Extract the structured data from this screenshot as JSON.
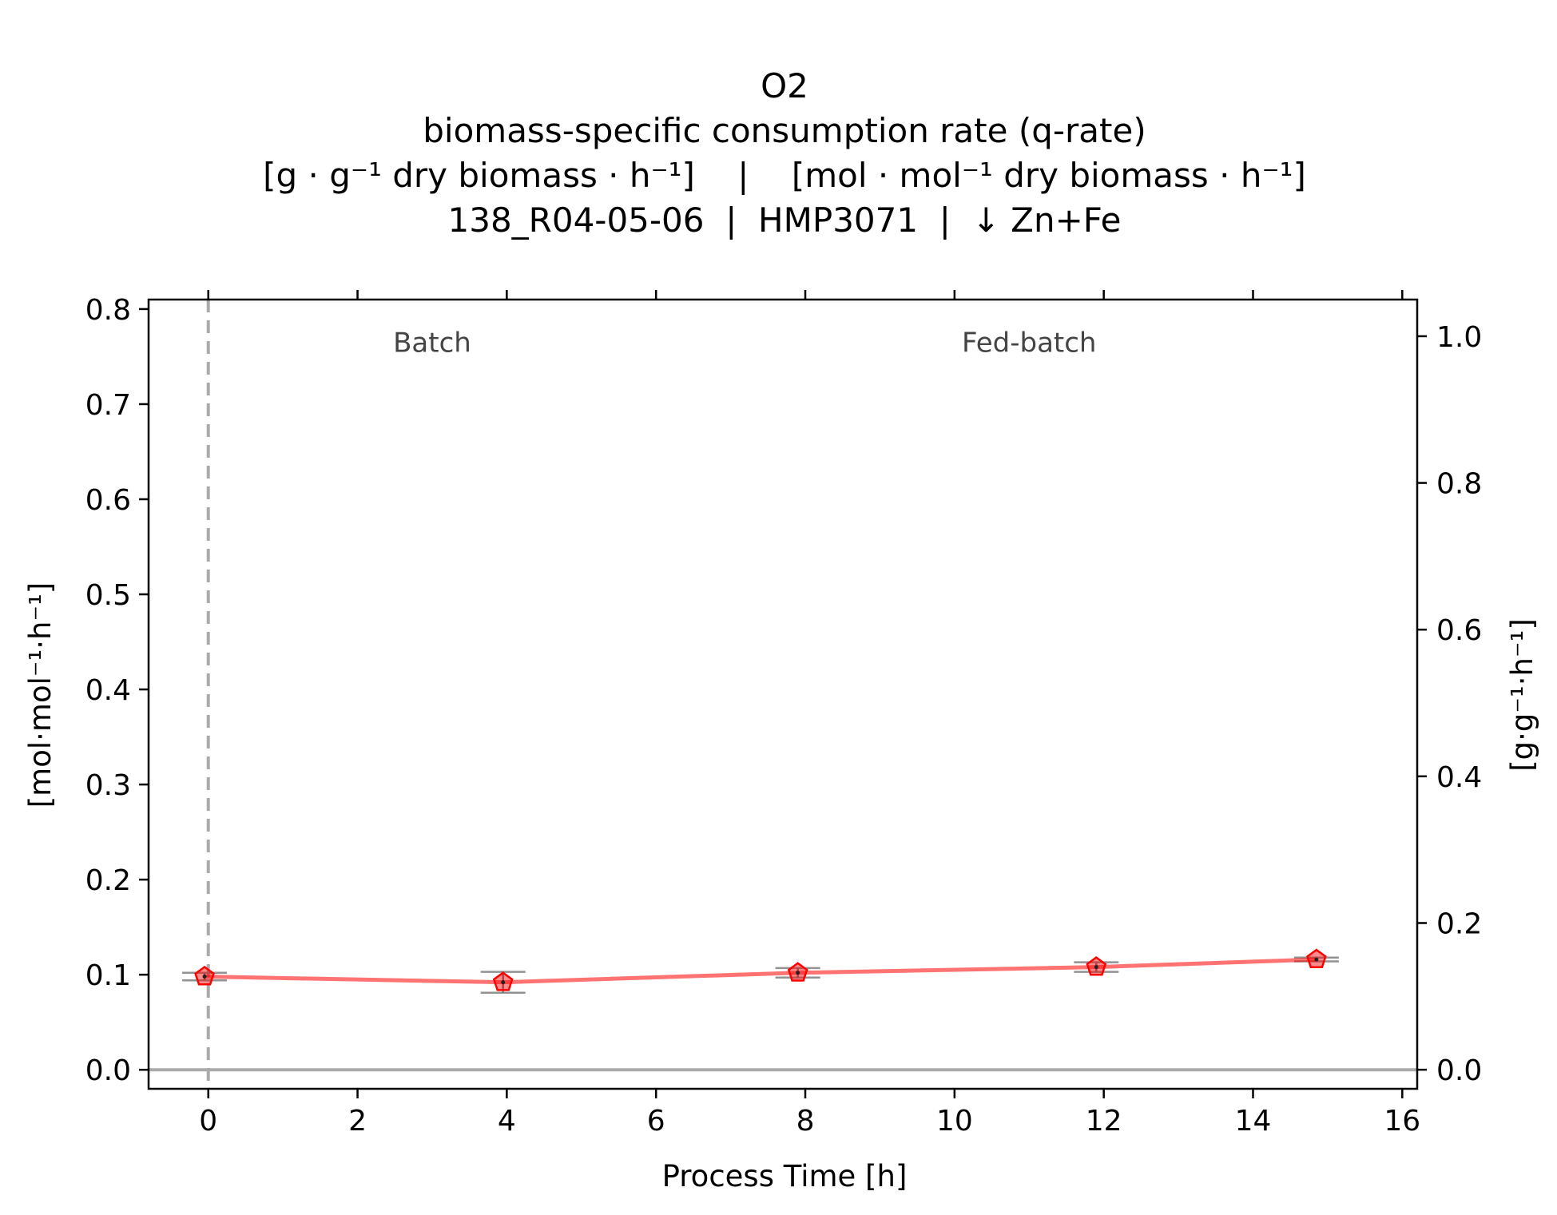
{
  "chart_data": {
    "type": "line",
    "title_lines": [
      "O2",
      "biomass-specific consumption rate (q-rate)",
      "[g · g⁻¹ dry biomass · h⁻¹]    |    [mol · mol⁻¹ dry biomass · h⁻¹]",
      "138_R04-05-06  |  HMP3071  |  ↓ Zn+Fe"
    ],
    "xlabel": "Process Time [h]",
    "ylabel_left": "[mol·mol⁻¹·h⁻¹]",
    "ylabel_right": "[g·g⁻¹·h⁻¹]",
    "xlim": [
      -0.8,
      16.2
    ],
    "ylim_left": [
      -0.02,
      0.81
    ],
    "ylim_right": [
      -0.026,
      1.05
    ],
    "x_ticks": [
      0,
      2,
      4,
      6,
      8,
      10,
      12,
      14,
      16
    ],
    "x_tick_labels": [
      "0",
      "2",
      "4",
      "6",
      "8",
      "10",
      "12",
      "14",
      "16"
    ],
    "y_left_ticks": [
      0.0,
      0.1,
      0.2,
      0.3,
      0.4,
      0.5,
      0.6,
      0.7,
      0.8
    ],
    "y_left_tick_labels": [
      "0.0",
      "0.1",
      "0.2",
      "0.3",
      "0.4",
      "0.5",
      "0.6",
      "0.7",
      "0.8"
    ],
    "y_right_ticks": [
      0.0,
      0.2,
      0.4,
      0.6,
      0.8,
      1.0
    ],
    "y_right_tick_labels": [
      "0.0",
      "0.2",
      "0.4",
      "0.6",
      "0.8",
      "1.0"
    ],
    "phase_labels": [
      {
        "text": "Batch",
        "x": 3.0,
        "y": 0.755
      },
      {
        "text": "Fed-batch",
        "x": 11.0,
        "y": 0.755
      }
    ],
    "phase_start_x": 0,
    "series": [
      {
        "color": "#ff0000",
        "x": [
          -0.05,
          3.95,
          7.9,
          11.9,
          14.85
        ],
        "y": [
          0.098,
          0.092,
          0.102,
          0.108,
          0.116
        ],
        "error": [
          0.004,
          0.011,
          0.005,
          0.005,
          0.002
        ]
      }
    ],
    "grid": false,
    "zero_line": true
  }
}
